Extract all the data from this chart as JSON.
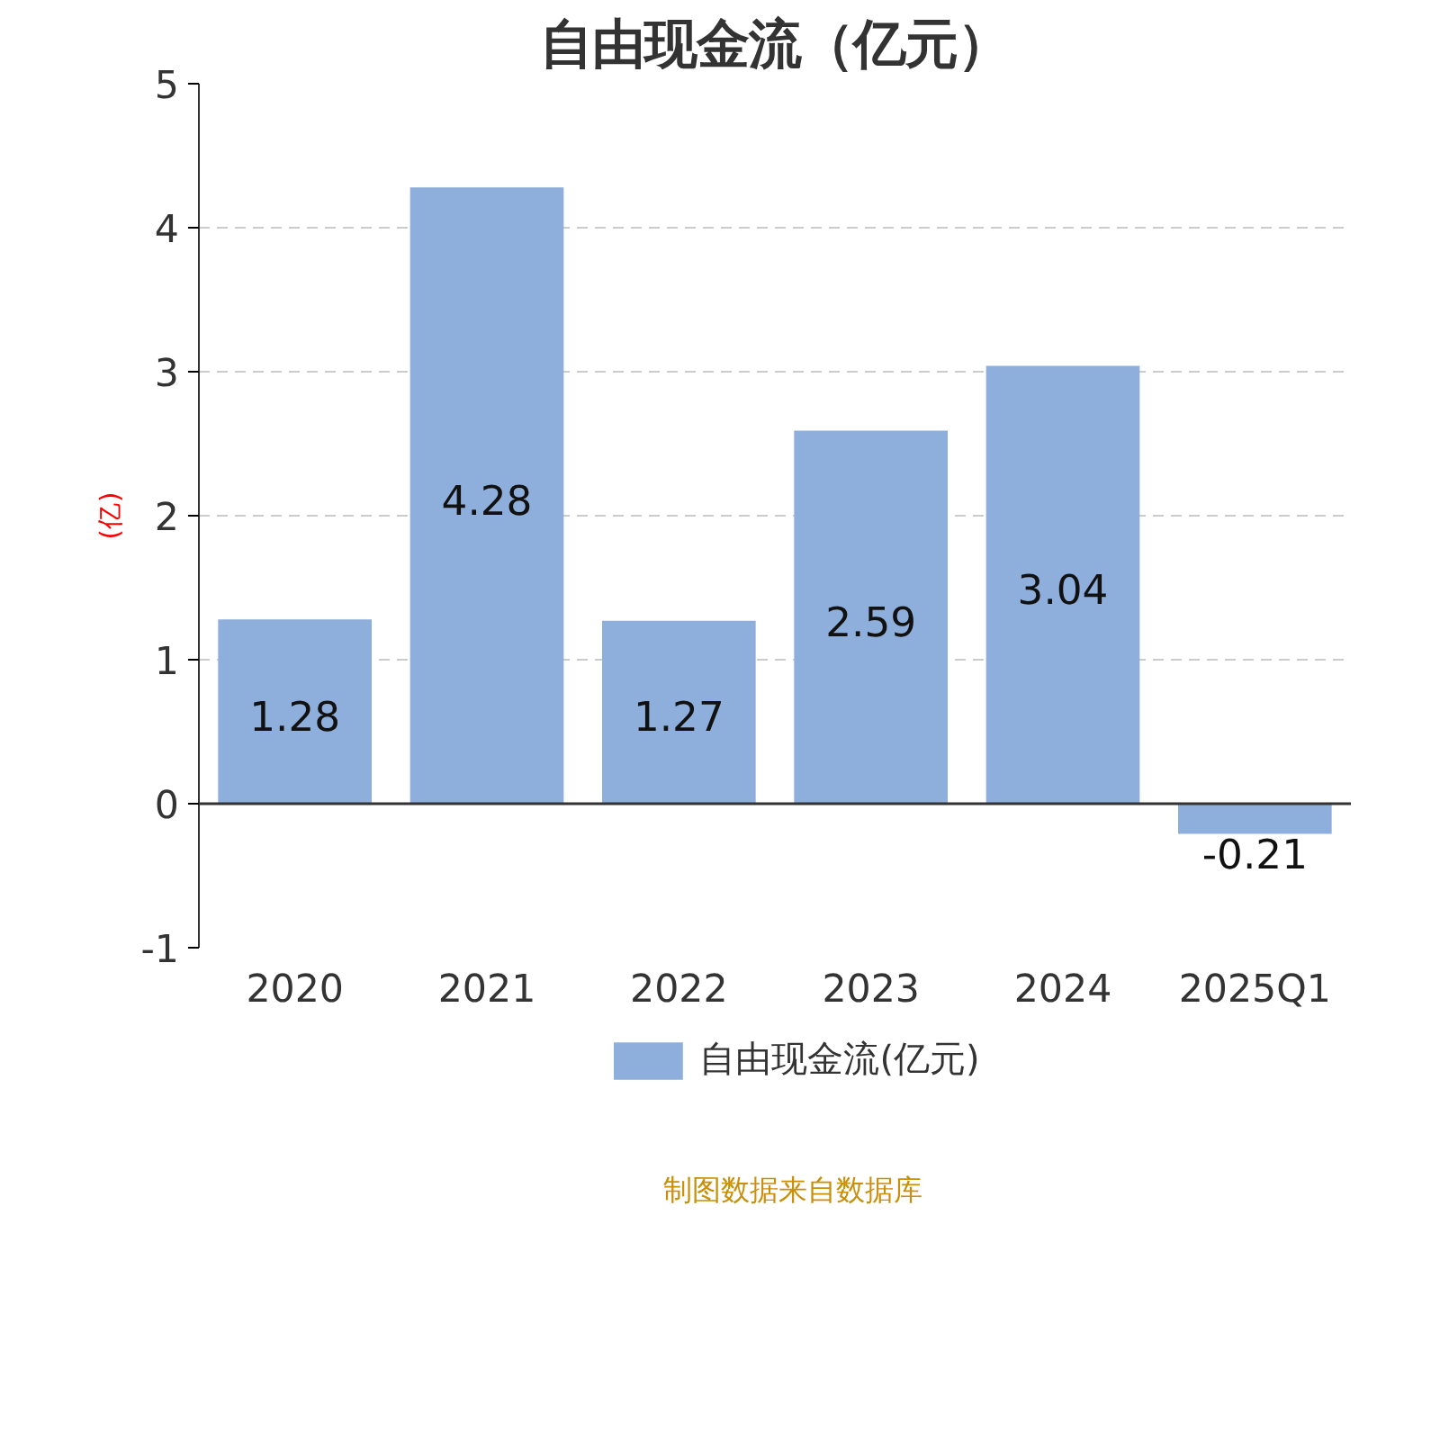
{
  "chart_data": {
    "type": "bar",
    "title": "自由现金流（亿元）",
    "ylabel": "(亿)",
    "categories": [
      "2020",
      "2021",
      "2022",
      "2023",
      "2024",
      "2025Q1"
    ],
    "series": [
      {
        "name": "自由现金流(亿元)",
        "color": "#8eaedb",
        "values": [
          1.28,
          4.28,
          1.27,
          2.59,
          3.04,
          -0.21
        ]
      }
    ],
    "ylim": [
      -1,
      5
    ],
    "yticks": [
      -1,
      0,
      1,
      2,
      3,
      4,
      5
    ],
    "grid": "y",
    "legend": "bottom",
    "data_labels": true,
    "annotations": [
      "制图数据来自数据库"
    ]
  }
}
